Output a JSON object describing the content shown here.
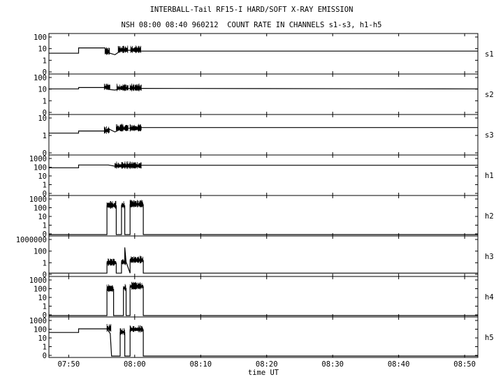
{
  "title": "INTERBALL-Tail RF15-I HARD/SOFT X-RAY EMISSION",
  "subtitle": "NSH 08:00 08:40 960212  COUNT RATE IN CHANNELS s1-s3, h1-h5",
  "chart_data": {
    "type": "line",
    "title": "INTERBALL-Tail RF15-I HARD/SOFT X-RAY EMISSION",
    "subtitle": "NSH 08:00 08:40 960212  COUNT RATE IN CHANNELS s1-s3, h1-h5",
    "xlabel": "time UT",
    "x_range": [
      "07:47",
      "08:52"
    ],
    "x_ticks": [
      "07:50",
      "08:00",
      "08:10",
      "08:20",
      "08:30",
      "08:40",
      "08:50"
    ],
    "y_scale": "log",
    "grid": false,
    "panels": [
      {
        "name": "s1",
        "y_ticks": [
          "100",
          "10",
          "1",
          "0"
        ],
        "ylim": [
          0.1,
          100
        ],
        "segments": [
          [
            "07:47",
            4
          ],
          [
            "07:51.5",
            4
          ],
          [
            "07:51.5",
            11
          ],
          [
            "07:55.5",
            11
          ],
          [
            "07:55.7",
            5
          ],
          [
            "07:57.0",
            3
          ],
          [
            "07:58.0",
            7
          ],
          [
            "08:00.5",
            7
          ],
          [
            "08:01",
            6
          ],
          [
            "08:52",
            6
          ]
        ],
        "noise": [
          [
            "07:55.5",
            "07:56.2"
          ],
          [
            "07:57.5",
            "07:59.0"
          ],
          [
            "07:59.4",
            "08:01.0"
          ]
        ]
      },
      {
        "name": "s2",
        "y_ticks": [
          "100",
          "10",
          "1",
          "0"
        ],
        "ylim": [
          0.1,
          100
        ],
        "segments": [
          [
            "07:47",
            10
          ],
          [
            "07:51.5",
            10
          ],
          [
            "07:51.5",
            13
          ],
          [
            "07:55.5",
            13
          ],
          [
            "07:56",
            9
          ],
          [
            "07:57",
            8
          ],
          [
            "07:58",
            11
          ],
          [
            "08:01",
            11
          ],
          [
            "08:52",
            10
          ]
        ],
        "noise": [
          [
            "07:55.4",
            "07:56.3"
          ],
          [
            "07:57.3",
            "07:59.0"
          ],
          [
            "07:59.3",
            "08:01.0"
          ]
        ]
      },
      {
        "name": "s3",
        "y_ticks": [
          "10",
          "1",
          "0"
        ],
        "ylim": [
          0.1,
          30
        ],
        "segments": [
          [
            "07:47",
            2.5
          ],
          [
            "07:51.5",
            2.5
          ],
          [
            "07:51.5",
            3.5
          ],
          [
            "07:55.5",
            3.5
          ],
          [
            "07:56",
            5
          ],
          [
            "07:57",
            3
          ],
          [
            "07:58",
            5
          ],
          [
            "08:01",
            6
          ],
          [
            "08:52",
            6
          ]
        ],
        "noise": [
          [
            "07:55.4",
            "07:56.2"
          ],
          [
            "07:57.2",
            "07:59.0"
          ],
          [
            "07:59.3",
            "08:01.0"
          ]
        ]
      },
      {
        "name": "h1",
        "y_ticks": [
          "1000",
          "100",
          "10",
          "1",
          "0"
        ],
        "ylim": [
          0.1,
          1000
        ],
        "segments": [
          [
            "07:47",
            80
          ],
          [
            "07:51.5",
            80
          ],
          [
            "07:51.5",
            160
          ],
          [
            "07:56",
            160
          ],
          [
            "07:57",
            120
          ],
          [
            "07:59",
            120
          ],
          [
            "08:01",
            150
          ],
          [
            "08:52",
            150
          ]
        ],
        "noise": [
          [
            "07:57.0",
            "08:01.0"
          ]
        ]
      },
      {
        "name": "h2",
        "y_ticks": [
          "1000",
          "100",
          "10",
          "1",
          "0"
        ],
        "ylim": [
          0.1,
          1000
        ],
        "segments": [
          [
            "07:47",
            0.1
          ],
          [
            "07:55.8",
            0.1
          ],
          [
            "07:55.8",
            150
          ],
          [
            "07:57.2",
            150
          ],
          [
            "07:57.2",
            0.1
          ],
          [
            "07:58.0",
            0.1
          ],
          [
            "07:58.0",
            150
          ],
          [
            "07:58.5",
            150
          ],
          [
            "07:58.5",
            0.1
          ],
          [
            "07:59.3",
            0.1
          ],
          [
            "07:59.3",
            200
          ],
          [
            "08:01.3",
            200
          ],
          [
            "08:01.3",
            0.1
          ],
          [
            "08:52",
            0.1
          ]
        ],
        "noise": [
          [
            "07:55.8",
            "07:57.2"
          ],
          [
            "07:58.0",
            "07:58.5"
          ],
          [
            "07:59.3",
            "08:01.3"
          ]
        ]
      },
      {
        "name": "h3",
        "y_ticks": [
          "1000000",
          "100",
          "1",
          "0"
        ],
        "ylim": [
          0.1,
          3000000
        ],
        "segments": [
          [
            "07:47",
            0.25
          ],
          [
            "07:55.8",
            0.25
          ],
          [
            "07:55.8",
            30
          ],
          [
            "07:57.2",
            30
          ],
          [
            "07:57.2",
            0.25
          ],
          [
            "07:58.0",
            0.25
          ],
          [
            "07:58.0",
            40
          ],
          [
            "07:58.5",
            40
          ],
          [
            "07:58.5",
            50000
          ],
          [
            "07:58.7",
            50
          ],
          [
            "07:59.3",
            0.25
          ],
          [
            "07:59.3",
            100
          ],
          [
            "08:01.3",
            100
          ],
          [
            "08:01.3",
            0.25
          ],
          [
            "08:52",
            0.25
          ]
        ],
        "noise": [
          [
            "07:55.8",
            "07:57.2"
          ],
          [
            "07:58.0",
            "07:58.7"
          ],
          [
            "07:59.3",
            "08:01.3"
          ]
        ]
      },
      {
        "name": "h4",
        "y_ticks": [
          "1000",
          "100",
          "10",
          "1",
          "0"
        ],
        "ylim": [
          0.1,
          1000
        ],
        "segments": [
          [
            "07:47",
            0.1
          ],
          [
            "07:55.8",
            0.1
          ],
          [
            "07:55.8",
            80
          ],
          [
            "07:56.8",
            80
          ],
          [
            "07:56.8",
            0.1
          ],
          [
            "07:58.3",
            0.1
          ],
          [
            "07:58.3",
            100
          ],
          [
            "07:58.7",
            100
          ],
          [
            "07:58.7",
            0.1
          ],
          [
            "07:59.3",
            0.1
          ],
          [
            "07:59.3",
            150
          ],
          [
            "08:01.3",
            150
          ],
          [
            "08:01.3",
            0.1
          ],
          [
            "08:52",
            0.1
          ]
        ],
        "noise": [
          [
            "07:55.8",
            "07:56.8"
          ],
          [
            "07:58.3",
            "07:58.7"
          ],
          [
            "07:59.3",
            "08:01.3"
          ]
        ]
      },
      {
        "name": "h5",
        "y_ticks": [
          "1000",
          "100",
          "10",
          "1",
          "0"
        ],
        "ylim": [
          0.1,
          1000
        ],
        "segments": [
          [
            "07:47",
            40
          ],
          [
            "07:51.5",
            40
          ],
          [
            "07:51.5",
            100
          ],
          [
            "07:55.8",
            100
          ],
          [
            "07:56.3",
            30
          ],
          [
            "07:56.5",
            0.1
          ],
          [
            "07:57.8",
            0.1
          ],
          [
            "07:57.8",
            40
          ],
          [
            "07:58.5",
            40
          ],
          [
            "07:58.5",
            0.1
          ],
          [
            "07:59.3",
            0.1
          ],
          [
            "07:59.3",
            80
          ],
          [
            "08:01.3",
            80
          ],
          [
            "08:01.3",
            0.1
          ],
          [
            "08:52",
            0.1
          ]
        ],
        "noise": [
          [
            "07:55.8",
            "07:56.4"
          ],
          [
            "07:57.8",
            "07:58.5"
          ],
          [
            "07:59.3",
            "08:01.3"
          ]
        ]
      }
    ]
  }
}
